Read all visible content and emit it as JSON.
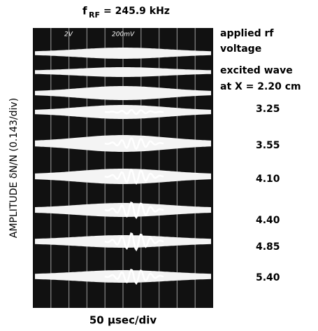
{
  "figure": {
    "title": {
      "prefix": "f",
      "subscript": "RF",
      "rest": "= 245.9 kHz"
    },
    "scope_labels": [
      "2V",
      "200mV"
    ],
    "trace_labels": [
      "applied rf",
      "voltage",
      "excited wave",
      "at X = 2.20 cm",
      "3.25",
      "3.55",
      "4.10",
      "4.40",
      "4.85",
      "5.40"
    ],
    "y_label": "AMPLITUDE δN/N (0.143/div)",
    "x_label": "50 μsec/div"
  }
}
